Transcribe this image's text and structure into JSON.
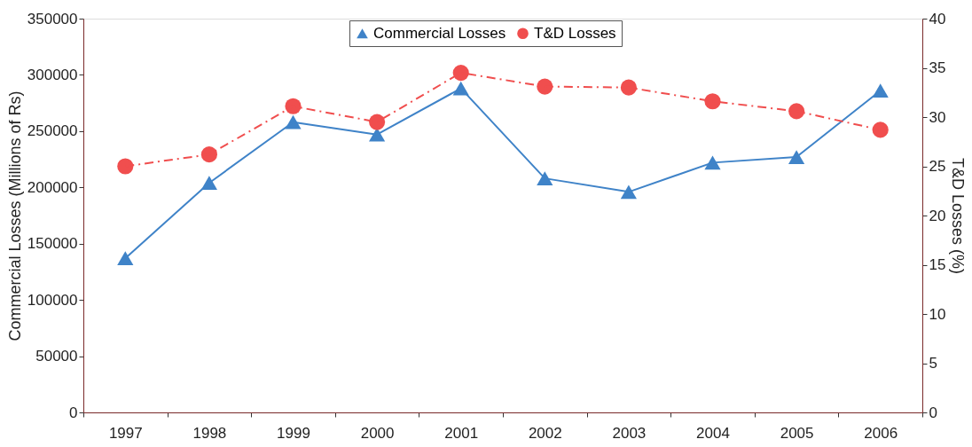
{
  "chart_data": {
    "type": "line",
    "categories": [
      "1997",
      "1998",
      "1999",
      "2000",
      "2001",
      "2002",
      "2003",
      "2004",
      "2005",
      "2006"
    ],
    "series": [
      {
        "name": "Commercial Losses",
        "color": "#3f83c8",
        "marker": "triangle",
        "line_style": "solid",
        "values": [
          137000,
          204000,
          258000,
          247000,
          288000,
          208000,
          196000,
          222000,
          227000,
          286000
        ]
      },
      {
        "name": "T&D Losses",
        "color": "#f04e4e",
        "marker": "circle",
        "line_style": "dashed",
        "axis": "y2",
        "values": [
          25,
          26.2,
          31.1,
          29.5,
          34.5,
          33.1,
          33.0,
          31.6,
          30.6,
          28.7
        ]
      }
    ],
    "ylabel": "Commercial Losses (Millions of Rs)",
    "y2label": "T&D Losses (%)",
    "ylim": [
      0,
      350000
    ],
    "yticks": [
      0,
      50000,
      100000,
      150000,
      200000,
      250000,
      300000,
      350000
    ],
    "y2lim": [
      0,
      40
    ],
    "y2ticks": [
      0,
      5,
      10,
      15,
      20,
      25,
      30,
      35,
      40
    ],
    "grid": false,
    "legend": "top"
  }
}
